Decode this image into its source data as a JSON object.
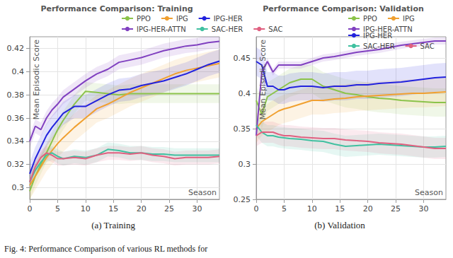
{
  "chart_data": [
    {
      "type": "line",
      "title": "Performance Comparison: Training",
      "caption": "(a) Training",
      "y_label": "Mean Episodic Score",
      "x_label": "Season",
      "grid": true,
      "legend": "top",
      "x": [
        0,
        1,
        2,
        3,
        4,
        5,
        6,
        8,
        10,
        12,
        14,
        16,
        18,
        20,
        22,
        24,
        26,
        28,
        30,
        32,
        34
      ],
      "xlim": [
        0,
        34
      ],
      "xticks": [
        0,
        5,
        10,
        15,
        20,
        25,
        30
      ],
      "ylim": [
        0.29,
        0.43
      ],
      "yticks": [
        0.3,
        0.32,
        0.34,
        0.36,
        0.38,
        0.4,
        0.42
      ],
      "series": [
        {
          "name": "PPO",
          "color": "#8bc34a",
          "error": 0.008,
          "values": [
            0.297,
            0.31,
            0.32,
            0.33,
            0.34,
            0.35,
            0.358,
            0.372,
            0.383,
            0.382,
            0.381,
            0.38,
            0.381,
            0.381,
            0.381,
            0.381,
            0.381,
            0.381,
            0.381,
            0.381,
            0.381
          ]
        },
        {
          "name": "IPG",
          "color": "#f0a030",
          "error": 0.012,
          "values": [
            0.302,
            0.31,
            0.318,
            0.326,
            0.332,
            0.338,
            0.343,
            0.352,
            0.36,
            0.368,
            0.372,
            0.377,
            0.382,
            0.386,
            0.39,
            0.394,
            0.398,
            0.401,
            0.403,
            0.405,
            0.407
          ]
        },
        {
          "name": "IPG-HER",
          "color": "#2222dd",
          "error": 0.01,
          "values": [
            0.312,
            0.325,
            0.335,
            0.345,
            0.352,
            0.358,
            0.364,
            0.37,
            0.37,
            0.375,
            0.38,
            0.384,
            0.385,
            0.388,
            0.39,
            0.392,
            0.395,
            0.398,
            0.402,
            0.406,
            0.409
          ]
        },
        {
          "name": "IPG-HER-ATTN",
          "color": "#8040c0",
          "error": 0.006,
          "values": [
            0.34,
            0.353,
            0.35,
            0.36,
            0.367,
            0.372,
            0.378,
            0.385,
            0.392,
            0.398,
            0.402,
            0.408,
            0.41,
            0.412,
            0.415,
            0.418,
            0.42,
            0.422,
            0.423,
            0.425,
            0.426
          ]
        },
        {
          "name": "SAC-HER",
          "color": "#40c0a0",
          "error": 0.006,
          "values": [
            0.305,
            0.315,
            0.322,
            0.328,
            0.33,
            0.327,
            0.325,
            0.327,
            0.326,
            0.328,
            0.333,
            0.332,
            0.33,
            0.33,
            0.329,
            0.329,
            0.328,
            0.328,
            0.328,
            0.328,
            0.328
          ]
        },
        {
          "name": "SAC",
          "color": "#e06080",
          "error": 0.006,
          "values": [
            0.305,
            0.318,
            0.326,
            0.33,
            0.328,
            0.325,
            0.325,
            0.326,
            0.325,
            0.328,
            0.33,
            0.33,
            0.329,
            0.33,
            0.328,
            0.327,
            0.325,
            0.326,
            0.326,
            0.326,
            0.327
          ]
        }
      ]
    },
    {
      "type": "line",
      "title": "Performance Comparison: Validation",
      "caption": "(b) Validation",
      "y_label": "Mean Episodic Score",
      "x_label": "Season",
      "grid": true,
      "legend": "top",
      "x": [
        0,
        1,
        2,
        3,
        4,
        5,
        6,
        8,
        10,
        12,
        14,
        16,
        18,
        20,
        22,
        24,
        26,
        28,
        30,
        32,
        34
      ],
      "xlim": [
        0,
        34
      ],
      "xticks": [
        0,
        5,
        10,
        15,
        20,
        25,
        30
      ],
      "ylim": [
        0.25,
        0.48
      ],
      "yticks": [
        0.25,
        0.3,
        0.35,
        0.4,
        0.45
      ],
      "series": [
        {
          "name": "PPO",
          "color": "#8bc34a",
          "error": 0.02,
          "values": [
            0.39,
            0.37,
            0.395,
            0.4,
            0.405,
            0.41,
            0.415,
            0.42,
            0.42,
            0.41,
            0.405,
            0.4,
            0.398,
            0.395,
            0.393,
            0.392,
            0.39,
            0.389,
            0.388,
            0.387,
            0.387
          ]
        },
        {
          "name": "IPG",
          "color": "#f0a030",
          "error": 0.02,
          "values": [
            0.35,
            0.36,
            0.365,
            0.37,
            0.375,
            0.378,
            0.38,
            0.385,
            0.39,
            0.39,
            0.392,
            0.393,
            0.395,
            0.396,
            0.397,
            0.398,
            0.399,
            0.4,
            0.4,
            0.401,
            0.402
          ]
        },
        {
          "name": "IPG-HER",
          "color": "#2222dd",
          "error": 0.02,
          "values": [
            0.445,
            0.44,
            0.41,
            0.41,
            0.405,
            0.405,
            0.408,
            0.41,
            0.41,
            0.408,
            0.41,
            0.41,
            0.412,
            0.412,
            0.414,
            0.415,
            0.416,
            0.418,
            0.42,
            0.422,
            0.423
          ]
        },
        {
          "name": "IPG-HER-ATTN",
          "color": "#8040c0",
          "error": 0.005,
          "values": [
            0.34,
            0.43,
            0.445,
            0.43,
            0.44,
            0.44,
            0.44,
            0.44,
            0.445,
            0.45,
            0.452,
            0.455,
            0.458,
            0.46,
            0.462,
            0.465,
            0.468,
            0.47,
            0.472,
            0.474,
            0.474
          ]
        },
        {
          "name": "SAC-HER",
          "color": "#40c0a0",
          "error": 0.015,
          "values": [
            0.355,
            0.345,
            0.34,
            0.34,
            0.338,
            0.337,
            0.336,
            0.335,
            0.333,
            0.332,
            0.328,
            0.325,
            0.326,
            0.327,
            0.328,
            0.327,
            0.326,
            0.325,
            0.324,
            0.324,
            0.325
          ]
        },
        {
          "name": "SAC",
          "color": "#e06080",
          "error": 0.015,
          "values": [
            0.34,
            0.345,
            0.345,
            0.345,
            0.342,
            0.34,
            0.34,
            0.338,
            0.337,
            0.336,
            0.336,
            0.334,
            0.333,
            0.332,
            0.33,
            0.329,
            0.328,
            0.326,
            0.324,
            0.322,
            0.322
          ]
        }
      ]
    }
  ],
  "caption": "Fig. 4: Performance Comparison of various RL methods for"
}
